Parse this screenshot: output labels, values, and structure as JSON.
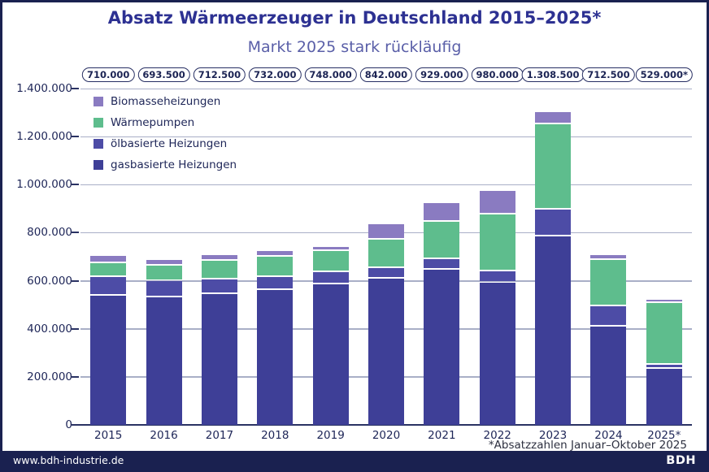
{
  "header": {
    "title": "Absatz Wärmeerzeuger in Deutschland 2015–2025*",
    "subtitle": "Markt 2025 stark rückläufig"
  },
  "chart_data": {
    "type": "bar",
    "stacked": true,
    "title": "Absatz Wärmeerzeuger in Deutschland 2015–2025*",
    "subtitle": "Markt 2025 stark rückläufig",
    "categories": [
      "2015",
      "2016",
      "2017",
      "2018",
      "2019",
      "2020",
      "2021",
      "2022",
      "2023",
      "2024",
      "2025*"
    ],
    "totals_labels": [
      "710.000",
      "693.500",
      "712.500",
      "732.000",
      "748.000",
      "842.000",
      "929.000",
      "980.000",
      "1.308.500",
      "712.500",
      "529.000*"
    ],
    "totals_values": [
      710000,
      693500,
      712500,
      732000,
      748000,
      842000,
      929000,
      980000,
      1308500,
      712500,
      529000
    ],
    "series": [
      {
        "name": "gasbasierte Heizungen",
        "color": "#3e3f97",
        "values": [
          546000,
          536500,
          552500,
          566500,
          591500,
          614500,
          653000,
          598000,
          790000,
          417500,
          241000
        ]
      },
      {
        "name": "ölbasierte Heizungen",
        "color": "#4d4ca6",
        "values": [
          77000,
          67500,
          58500,
          57000,
          52500,
          44500,
          44000,
          49000,
          112500,
          83500,
          17000
        ]
      },
      {
        "name": "Wärmepumpen",
        "color": "#5ebd8d",
        "values": [
          57000,
          66500,
          78000,
          84000,
          86500,
          120000,
          154000,
          236000,
          356000,
          193000,
          256000
        ]
      },
      {
        "name": "Biomasseheizungen",
        "color": "#8a7bc1",
        "values": [
          30000,
          23000,
          23500,
          24500,
          17500,
          63000,
          78000,
          97000,
          50000,
          18500,
          15000
        ]
      }
    ],
    "legend_top_to_bottom": [
      "Biomasseheizungen",
      "Wärmepumpen",
      "ölbasierte Heizungen",
      "gasbasierte Heizungen"
    ],
    "ylim": [
      0,
      1400000
    ],
    "y_tick_labels": [
      "0",
      "200.000",
      "400.000",
      "600.000",
      "800.000",
      "1.000.000",
      "1.200.000",
      "1.400.000"
    ],
    "grid": true,
    "legend_position": "top-left",
    "footnote": "*Absatzzahlen Januar–Oktober 2025"
  },
  "footer": {
    "website": "www.bdh-industrie.de",
    "logo": "BDH"
  }
}
